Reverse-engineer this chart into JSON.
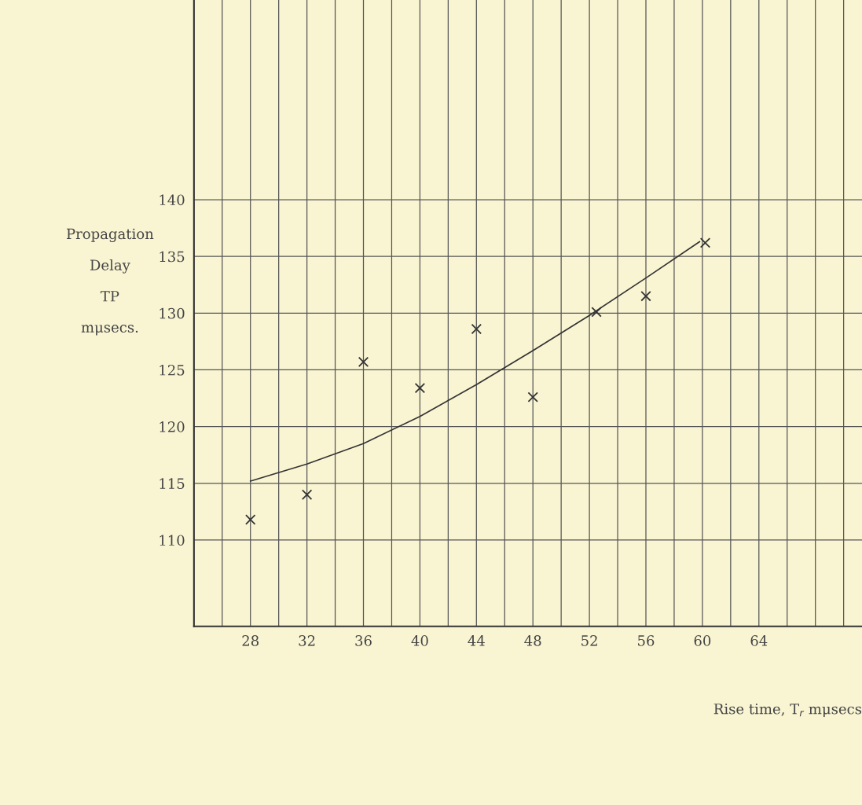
{
  "chart_data": {
    "type": "scatter",
    "xlabel": "Rise time, T$_{r}$ mμsecs",
    "ylabel": "Propagation\nDelay\nTP\nmμsecs.",
    "xlim": [
      24,
      71.3
    ],
    "ylim": [
      102.4,
      157.6
    ],
    "xticks": [
      {
        "value": 24,
        "label": null
      },
      {
        "value": 26,
        "label": null
      },
      28,
      {
        "value": 30,
        "label": null
      },
      32,
      {
        "value": 34,
        "label": null
      },
      36,
      {
        "value": 38,
        "label": null
      },
      40,
      {
        "value": 42,
        "label": null
      },
      44,
      {
        "value": 46,
        "label": null
      },
      48,
      {
        "value": 50,
        "label": null
      },
      52,
      {
        "value": 54,
        "label": null
      },
      56,
      {
        "value": 58,
        "label": null
      },
      60,
      {
        "value": 62,
        "label": null
      },
      64,
      {
        "value": 66,
        "label": null
      },
      {
        "value": 68,
        "label": null
      },
      {
        "value": 70,
        "label": null
      }
    ],
    "yticks": [
      110,
      115,
      120,
      125,
      130,
      135,
      140
    ],
    "grid": true,
    "marker": "cross",
    "series": [
      {
        "color": "#333333",
        "x": [
          28,
          32,
          36,
          40,
          44,
          48,
          52.5,
          56,
          60.2
        ],
        "values": [
          111.8,
          114,
          125.7,
          123.4,
          128.6,
          122.6,
          130.1,
          131.5,
          136.2
        ]
      },
      {
        "type": "line",
        "color": "#333333",
        "marker": "none",
        "x": [
          28,
          32,
          36,
          40,
          44,
          48,
          52,
          56,
          59.8
        ],
        "values": [
          115.2,
          116.7,
          118.5,
          120.9,
          123.7,
          126.7,
          129.8,
          133.1,
          136.3
        ]
      }
    ]
  }
}
